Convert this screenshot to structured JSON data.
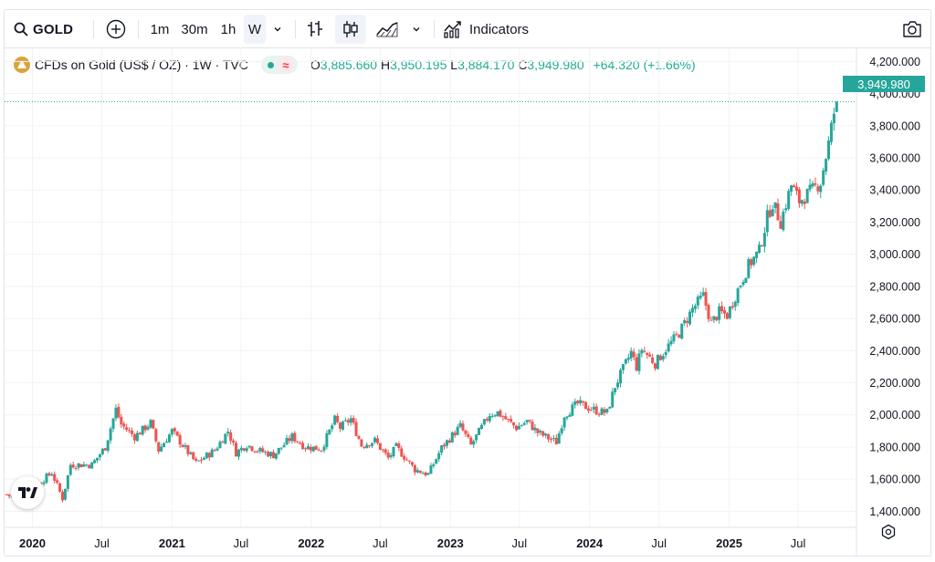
{
  "toolbar": {
    "symbol": "GOLD",
    "intervals": [
      "1m",
      "30m",
      "1h",
      "W"
    ],
    "indicators_label": "Indicators"
  },
  "legend": {
    "title": "CFDs on Gold (US$ / OZ) · 1W · TVC",
    "open_key": "O",
    "open": "3,885.660",
    "high_key": "H",
    "high": "3,950.195",
    "low_key": "L",
    "low": "3,884.170",
    "close_key": "C",
    "close": "3,949.980",
    "change": "+64.320 (+1.66%)"
  },
  "last_price_label": "3,949.980",
  "colors": {
    "up": "#26a69a",
    "down": "#ef5350",
    "accent": "#2962ff",
    "coin": "#d9a43b"
  },
  "icons": [
    "search-icon",
    "add-symbol-icon",
    "chevron-down-icon",
    "bar-style-icon",
    "candles-icon",
    "area-style-icon",
    "indicators-icon",
    "camera-icon",
    "tradingview-logo-icon",
    "settings-icon"
  ],
  "chart_data": {
    "type": "candlestick",
    "symbol": "GOLD",
    "interval": "1W",
    "ylim": [
      1300,
      4270
    ],
    "y_ticks": [
      "4,200.000",
      "4,000.000",
      "3,800.000",
      "3,600.000",
      "3,400.000",
      "3,200.000",
      "3,000.000",
      "2,800.000",
      "2,600.000",
      "2,400.000",
      "2,200.000",
      "2,000.000",
      "1,800.000",
      "1,600.000",
      "1,400.000"
    ],
    "x_ticks": [
      "2020",
      "Jul",
      "2021",
      "Jul",
      "2022",
      "Jul",
      "2023",
      "Jul",
      "2024",
      "Jul",
      "2025",
      "Jul"
    ],
    "x_tick_dates": [
      "2020-01-01",
      "2020-07-01",
      "2021-01-01",
      "2021-07-01",
      "2022-01-01",
      "2022-07-01",
      "2023-01-01",
      "2023-07-01",
      "2024-01-01",
      "2024-07-01",
      "2025-01-01",
      "2025-07-01"
    ],
    "x_range": [
      "2019-10-20",
      "2025-11-07"
    ],
    "last_close": 3949.98,
    "close_path": [
      [
        "2019-10-25",
        1505
      ],
      [
        "2019-12-01",
        1470
      ],
      [
        "2019-12-27",
        1510
      ],
      [
        "2020-01-10",
        1560
      ],
      [
        "2020-02-21",
        1640
      ],
      [
        "2020-03-20",
        1480
      ],
      [
        "2020-04-10",
        1690
      ],
      [
        "2020-06-05",
        1690
      ],
      [
        "2020-07-10",
        1800
      ],
      [
        "2020-08-07",
        2035
      ],
      [
        "2020-08-21",
        1940
      ],
      [
        "2020-09-25",
        1865
      ],
      [
        "2020-11-06",
        1950
      ],
      [
        "2020-11-27",
        1780
      ],
      [
        "2021-01-01",
        1900
      ],
      [
        "2021-03-05",
        1700
      ],
      [
        "2021-04-23",
        1780
      ],
      [
        "2021-05-28",
        1900
      ],
      [
        "2021-06-18",
        1765
      ],
      [
        "2021-07-16",
        1815
      ],
      [
        "2021-08-13",
        1780
      ],
      [
        "2021-09-24",
        1750
      ],
      [
        "2021-11-12",
        1865
      ],
      [
        "2021-12-17",
        1800
      ],
      [
        "2022-01-28",
        1790
      ],
      [
        "2022-03-04",
        1970
      ],
      [
        "2022-03-18",
        1920
      ],
      [
        "2022-04-15",
        1975
      ],
      [
        "2022-05-13",
        1810
      ],
      [
        "2022-06-17",
        1840
      ],
      [
        "2022-07-22",
        1730
      ],
      [
        "2022-08-12",
        1800
      ],
      [
        "2022-09-30",
        1660
      ],
      [
        "2022-11-04",
        1630
      ],
      [
        "2022-12-09",
        1795
      ],
      [
        "2023-01-27",
        1930
      ],
      [
        "2023-02-24",
        1810
      ],
      [
        "2023-04-14",
        2005
      ],
      [
        "2023-05-05",
        2015
      ],
      [
        "2023-06-23",
        1920
      ],
      [
        "2023-07-21",
        1960
      ],
      [
        "2023-08-18",
        1890
      ],
      [
        "2023-10-06",
        1830
      ],
      [
        "2023-10-27",
        2000
      ],
      [
        "2023-12-01",
        2070
      ],
      [
        "2024-01-26",
        2020
      ],
      [
        "2024-02-16",
        2015
      ],
      [
        "2024-03-08",
        2180
      ],
      [
        "2024-04-19",
        2390
      ],
      [
        "2024-05-03",
        2300
      ],
      [
        "2024-05-17",
        2410
      ],
      [
        "2024-06-21",
        2320
      ],
      [
        "2024-07-19",
        2410
      ],
      [
        "2024-08-23",
        2510
      ],
      [
        "2024-09-27",
        2660
      ],
      [
        "2024-10-25",
        2740
      ],
      [
        "2024-11-15",
        2570
      ],
      [
        "2024-12-06",
        2640
      ],
      [
        "2024-12-27",
        2620
      ],
      [
        "2025-01-24",
        2780
      ],
      [
        "2025-02-21",
        2930
      ],
      [
        "2025-03-21",
        3020
      ],
      [
        "2025-04-11",
        3230
      ],
      [
        "2025-04-25",
        3320
      ],
      [
        "2025-05-16",
        3200
      ],
      [
        "2025-06-13",
        3430
      ],
      [
        "2025-07-04",
        3330
      ],
      [
        "2025-08-08",
        3400
      ],
      [
        "2025-08-29",
        3450
      ],
      [
        "2025-09-19",
        3690
      ],
      [
        "2025-10-03",
        3880
      ],
      [
        "2025-10-10",
        3949.98
      ]
    ]
  }
}
